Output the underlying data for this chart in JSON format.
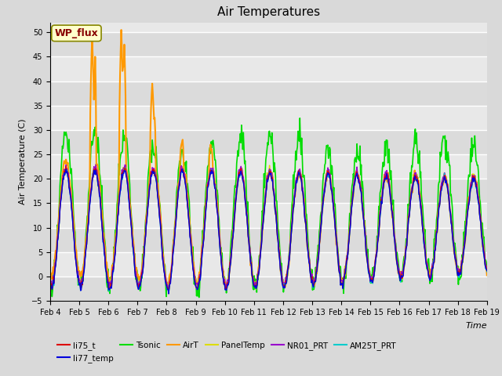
{
  "title": "Air Temperatures",
  "ylabel": "Air Temperature (C)",
  "xlabel": "Time",
  "ylim": [
    -5,
    52
  ],
  "n_days": 15,
  "pts_per_day": 48,
  "background_color": "#d9d9d9",
  "plot_bg_color": "#e8e8e8",
  "grid_color": "#ffffff",
  "series_colors": {
    "li75_t": "#dd0000",
    "li77_temp": "#0000dd",
    "Tsonic": "#00dd00",
    "AirT": "#ff9900",
    "PanelTemp": "#dddd00",
    "NR01_PRT": "#9900cc",
    "AM25T_PRT": "#00cccc"
  },
  "series_lw": {
    "li75_t": 1.0,
    "li77_temp": 1.0,
    "Tsonic": 1.2,
    "AirT": 1.5,
    "PanelTemp": 1.0,
    "NR01_PRT": 1.0,
    "AM25T_PRT": 1.0
  },
  "xtick_labels": [
    "Feb 4",
    "Feb 5",
    "Feb 6",
    "Feb 7",
    "Feb 8",
    "Feb 9",
    "Feb 10",
    "Feb 11",
    "Feb 12",
    "Feb 13",
    "Feb 14",
    "Feb 15",
    "Feb 16",
    "Feb 17",
    "Feb 18",
    "Feb 19"
  ],
  "annotation": {
    "text": "WP_flux",
    "fontsize": 9,
    "color": "#880000",
    "bg": "#ffffcc",
    "border": "#888800"
  },
  "title_fontsize": 11,
  "label_fontsize": 8,
  "tick_fontsize": 7,
  "legend_fontsize": 7.5
}
